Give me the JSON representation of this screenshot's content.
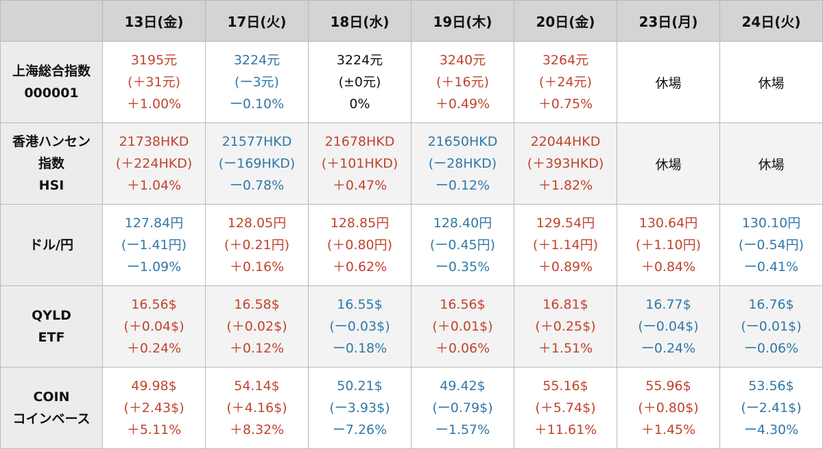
{
  "colors": {
    "up": "#c1432d",
    "down": "#2f78a8",
    "flat": "#111111"
  },
  "columns": [
    "13日(金)",
    "17日(火)",
    "18日(水)",
    "19日(木)",
    "20日(金)",
    "23日(月)",
    "24日(火)"
  ],
  "rows": [
    {
      "label_lines": [
        "上海総合指数",
        "000001"
      ],
      "cells": [
        {
          "lines": [
            "3195元",
            "(＋31元)",
            "＋1.00%"
          ],
          "trend": "up"
        },
        {
          "lines": [
            "3224元",
            "(ー3元)",
            "ー0.10%"
          ],
          "trend": "down"
        },
        {
          "lines": [
            "3224元",
            "(±0元)",
            "0%"
          ],
          "trend": "flat"
        },
        {
          "lines": [
            "3240元",
            "(＋16元)",
            "＋0.49%"
          ],
          "trend": "up"
        },
        {
          "lines": [
            "3264元",
            "(＋24元)",
            "＋0.75%"
          ],
          "trend": "up"
        },
        {
          "lines": [
            "休場"
          ],
          "trend": "closed"
        },
        {
          "lines": [
            "休場"
          ],
          "trend": "closed"
        }
      ]
    },
    {
      "label_lines": [
        "香港ハンセン",
        "指数",
        "HSI"
      ],
      "cells": [
        {
          "lines": [
            "21738HKD",
            "(＋224HKD)",
            "＋1.04%"
          ],
          "trend": "up"
        },
        {
          "lines": [
            "21577HKD",
            "(ー169HKD)",
            "ー0.78%"
          ],
          "trend": "down"
        },
        {
          "lines": [
            "21678HKD",
            "(＋101HKD)",
            "＋0.47%"
          ],
          "trend": "up"
        },
        {
          "lines": [
            "21650HKD",
            "(ー28HKD)",
            "ー0.12%"
          ],
          "trend": "down"
        },
        {
          "lines": [
            "22044HKD",
            "(＋393HKD)",
            "＋1.82%"
          ],
          "trend": "up"
        },
        {
          "lines": [
            "休場"
          ],
          "trend": "closed"
        },
        {
          "lines": [
            "休場"
          ],
          "trend": "closed"
        }
      ]
    },
    {
      "label_lines": [
        "ドル/円"
      ],
      "cells": [
        {
          "lines": [
            "127.84円",
            "(ー1.41円)",
            "ー1.09%"
          ],
          "trend": "down"
        },
        {
          "lines": [
            "128.05円",
            "(＋0.21円)",
            "＋0.16%"
          ],
          "trend": "up"
        },
        {
          "lines": [
            "128.85円",
            "(＋0.80円)",
            "＋0.62%"
          ],
          "trend": "up"
        },
        {
          "lines": [
            "128.40円",
            "(ー0.45円)",
            "ー0.35%"
          ],
          "trend": "down"
        },
        {
          "lines": [
            "129.54円",
            "(＋1.14円)",
            "＋0.89%"
          ],
          "trend": "up"
        },
        {
          "lines": [
            "130.64円",
            "(＋1.10円)",
            "＋0.84%"
          ],
          "trend": "up"
        },
        {
          "lines": [
            "130.10円",
            "(ー0.54円)",
            "ー0.41%"
          ],
          "trend": "down"
        }
      ]
    },
    {
      "label_lines": [
        "QYLD",
        "ETF"
      ],
      "cells": [
        {
          "lines": [
            "16.56$",
            "(＋0.04$)",
            "＋0.24%"
          ],
          "trend": "up"
        },
        {
          "lines": [
            "16.58$",
            "(＋0.02$)",
            "＋0.12%"
          ],
          "trend": "up"
        },
        {
          "lines": [
            "16.55$",
            "(ー0.03$)",
            "ー0.18%"
          ],
          "trend": "down"
        },
        {
          "lines": [
            "16.56$",
            "(＋0.01$)",
            "＋0.06%"
          ],
          "trend": "up"
        },
        {
          "lines": [
            "16.81$",
            "(＋0.25$)",
            "＋1.51%"
          ],
          "trend": "up"
        },
        {
          "lines": [
            "16.77$",
            "(ー0.04$)",
            "ー0.24%"
          ],
          "trend": "down"
        },
        {
          "lines": [
            "16.76$",
            "(ー0.01$)",
            "ー0.06%"
          ],
          "trend": "down"
        }
      ]
    },
    {
      "label_lines": [
        "COIN",
        "コインベース"
      ],
      "cells": [
        {
          "lines": [
            "49.98$",
            "(＋2.43$)",
            "＋5.11%"
          ],
          "trend": "up"
        },
        {
          "lines": [
            "54.14$",
            "(＋4.16$)",
            "＋8.32%"
          ],
          "trend": "up"
        },
        {
          "lines": [
            "50.21$",
            "(ー3.93$)",
            "ー7.26%"
          ],
          "trend": "down"
        },
        {
          "lines": [
            "49.42$",
            "(ー0.79$)",
            "ー1.57%"
          ],
          "trend": "down"
        },
        {
          "lines": [
            "55.16$",
            "(＋5.74$)",
            "＋11.61%"
          ],
          "trend": "up"
        },
        {
          "lines": [
            "55.96$",
            "(＋0.80$)",
            "＋1.45%"
          ],
          "trend": "up"
        },
        {
          "lines": [
            "53.56$",
            "(ー2.41$)",
            "ー4.30%"
          ],
          "trend": "down"
        }
      ]
    }
  ]
}
